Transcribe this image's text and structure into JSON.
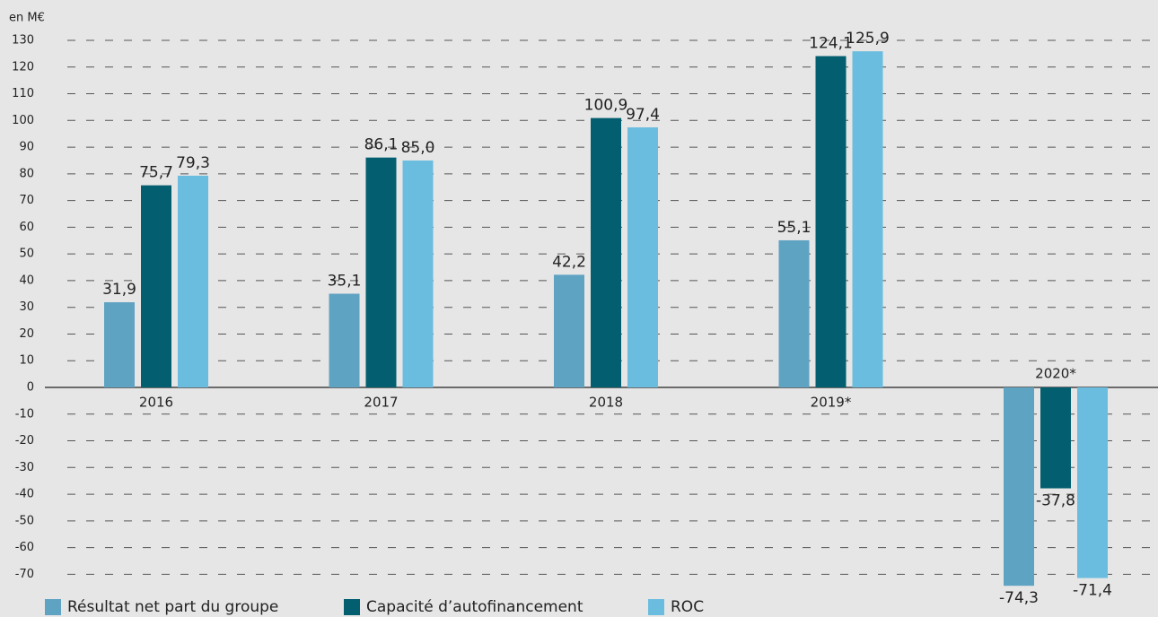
{
  "chart_data": {
    "type": "bar",
    "y_label": "en M€",
    "categories": [
      "2016",
      "2017",
      "2018",
      "2019*",
      "2020*"
    ],
    "series": [
      {
        "name": "Résultat net part du groupe",
        "color": "#5fa3c3",
        "values": [
          31.9,
          35.1,
          42.2,
          55.1,
          -74.3
        ],
        "value_labels": [
          "31,9",
          "35,1",
          "42,2",
          "55,1",
          "-74,3"
        ]
      },
      {
        "name": "Capacité d’autofinancement",
        "color": "#035f70",
        "values": [
          75.7,
          86.1,
          100.9,
          124.1,
          -37.8
        ],
        "value_labels": [
          "75,7",
          "86,1",
          "100,9",
          "124,1",
          "-37,8"
        ]
      },
      {
        "name": "ROC",
        "color": "#6bbde0",
        "values": [
          79.3,
          85.0,
          97.4,
          125.9,
          -71.4
        ],
        "value_labels": [
          "79,3",
          "85,0",
          "97,4",
          "125,9",
          "-71,4"
        ]
      }
    ],
    "ylim": [
      -80,
      135
    ],
    "yticks": [
      -70,
      -60,
      -50,
      -40,
      -30,
      -20,
      -10,
      0,
      10,
      20,
      30,
      40,
      50,
      60,
      70,
      80,
      90,
      100,
      110,
      120,
      130
    ],
    "grid": true
  }
}
